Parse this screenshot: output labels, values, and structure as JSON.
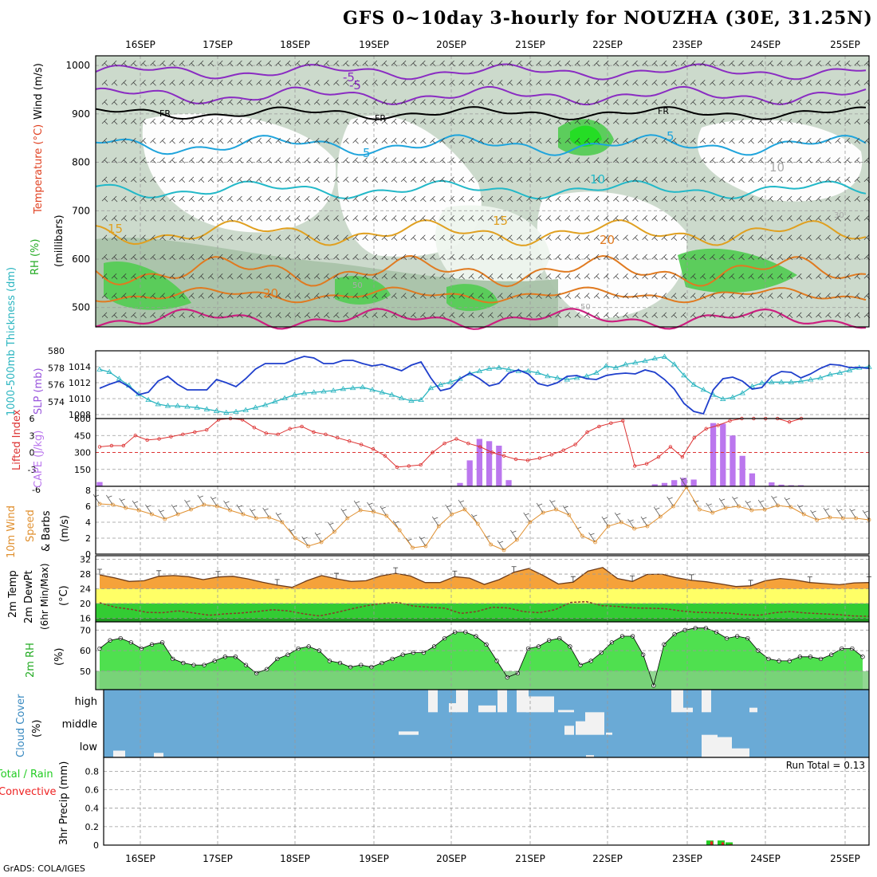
{
  "title": "GFS 0~10day 3-hourly for NOUZHA (30E, 31.25N)",
  "credit": "GrADS: COLA/IGES",
  "date_labels": [
    "16SEP",
    "17SEP",
    "18SEP",
    "19SEP",
    "20SEP",
    "21SEP",
    "22SEP",
    "23SEP",
    "24SEP",
    "25SEP"
  ],
  "colors": {
    "grid": "#999999",
    "temp_line": "#e08a1e",
    "dewpt_line": "#8b3a2b",
    "rh_fill": "#22dd22",
    "cloud_bg": "#6aaad6",
    "cloud_fill": "#f2f2f2",
    "slp": "#1f3fcc",
    "thickness": "#2bb5c0",
    "lifted": "#dd3333",
    "cape": "#bb77ee",
    "wind": "#e09030",
    "precip_total": "#22cc22",
    "precip_conv": "#ee2222"
  },
  "panels": {
    "upper_air": {
      "label_rh": "RH (%)",
      "label_temp": "Temperature (°C)",
      "label_wind": "Wind (m/s)",
      "label_mb": "(millibars)",
      "y_ticks": [
        "500",
        "600",
        "700",
        "800",
        "900",
        "1000"
      ],
      "contour_labels": [
        "-5",
        "FR",
        "FR",
        "FR",
        "5",
        "10",
        "15",
        "20",
        "20",
        "15",
        "-5",
        "5",
        "10",
        "30",
        "50",
        "50"
      ]
    },
    "slp": {
      "label_thick": "1000-500mb Thickness (dm)",
      "label_slp": "SLP (mb)",
      "thick_ticks": [
        "580",
        "578",
        "576",
        "574"
      ],
      "slp_ticks": [
        "1014",
        "1012",
        "1010",
        "1008"
      ]
    },
    "stability": {
      "label_li": "Lifted Index",
      "label_cape": "CAPE (J/kg)",
      "li_ticks": [
        "-3",
        "0",
        "3",
        "6"
      ],
      "li_top": "-6",
      "cape_ticks": [
        "600",
        "450",
        "300",
        "150"
      ]
    },
    "wind10": {
      "label_1": "10m Wind",
      "label_2": "Speed",
      "label_3": "& Barbs",
      "label_unit": "(m/s)",
      "y_ticks": [
        "8",
        "6",
        "4",
        "2",
        "0"
      ]
    },
    "temp2m": {
      "label_1": "2m Temp",
      "label_2": "2m DewPt",
      "label_3": "(6hr Min/Max)",
      "label_unit": "(°C)",
      "y_ticks": [
        "32",
        "28",
        "24",
        "20",
        "16"
      ]
    },
    "rh2m": {
      "label_1": "2m RH",
      "label_unit": "(%)",
      "y_ticks": [
        "70",
        "60",
        "50"
      ]
    },
    "cloud": {
      "label_1": "Cloud Cover",
      "label_unit": "(%)",
      "levels": [
        "high",
        "middle",
        "low"
      ]
    },
    "precip": {
      "label_total": "Total / Rain",
      "label_conv": "Convective",
      "label_y": "3hr Precip (mm)",
      "y_ticks": [
        "0.8",
        "0.6",
        "0.4",
        "0.2",
        "0"
      ],
      "run_total": "Run Total = 0.13"
    }
  },
  "chart_data": [
    {
      "type": "line",
      "title": "SLP (mb)",
      "ylim": [
        1007.5,
        1016
      ],
      "series": [
        {
          "name": "SLP",
          "values": [
            1011.3,
            1011.8,
            1012.2,
            1011.5,
            1010.5,
            1010.8,
            1012.2,
            1012.8,
            1011.8,
            1011.1,
            1011.1,
            1011.1,
            1012.4,
            1012.0,
            1011.5,
            1012.5,
            1013.7,
            1014.4,
            1014.4,
            1014.4,
            1014.9,
            1015.3,
            1015.1,
            1014.4,
            1014.4,
            1014.8,
            1014.8,
            1014.4,
            1014.1,
            1014.3,
            1013.9,
            1013.5,
            1014.2,
            1014.6,
            1012.6,
            1011.0,
            1011.3,
            1012.5,
            1013.2,
            1012.5,
            1011.6,
            1011.9,
            1013.2,
            1013.6,
            1013.1,
            1011.9,
            1011.6,
            1012.0,
            1012.8,
            1012.9,
            1012.5,
            1012.4,
            1012.9,
            1013.1,
            1013.2,
            1013.1,
            1013.6,
            1013.3,
            1012.4,
            1011.2,
            1009.4,
            1008.4,
            1008.1,
            1011.1,
            1012.5,
            1012.7,
            1012.2,
            1011.2,
            1011.4,
            1012.8,
            1013.4,
            1013.3,
            1012.6,
            1013.1,
            1013.8,
            1014.3,
            1014.2,
            1013.9,
            1013.9,
            1013.8
          ]
        },
        {
          "name": "Thickness",
          "values": [
            577.8,
            577.5,
            576.7,
            575.9,
            574.9,
            574.2,
            573.7,
            573.5,
            573.5,
            573.4,
            573.3,
            573.1,
            572.9,
            572.7,
            572.8,
            573.0,
            573.3,
            573.6,
            574.0,
            574.4,
            574.8,
            575.0,
            575.1,
            575.2,
            575.3,
            575.5,
            575.6,
            575.7,
            575.4,
            575.1,
            574.8,
            574.4,
            574.1,
            574.2,
            575.6,
            576.0,
            576.3,
            576.7,
            577.3,
            577.6,
            577.9,
            578.0,
            577.8,
            577.6,
            577.6,
            577.4,
            577.0,
            576.8,
            576.6,
            576.8,
            577.0,
            577.4,
            578.2,
            578.0,
            578.4,
            578.6,
            578.8,
            579.1,
            579.3,
            578.4,
            577.1,
            576.0,
            575.4,
            574.8,
            574.3,
            574.5,
            575.0,
            575.8,
            576.2,
            576.3,
            576.3,
            576.3,
            576.4,
            576.6,
            576.8,
            577.2,
            577.4,
            577.7,
            578.0,
            578.1
          ]
        }
      ]
    },
    {
      "type": "bar",
      "title": "CAPE (J/kg)",
      "ylim": [
        0,
        600
      ],
      "values": [
        38,
        0,
        0,
        0,
        0,
        0,
        0,
        0,
        0,
        0,
        0,
        0,
        0,
        0,
        0,
        0,
        0,
        0,
        0,
        0,
        0,
        0,
        0,
        0,
        0,
        0,
        0,
        0,
        0,
        0,
        0,
        0,
        0,
        0,
        0,
        0,
        0,
        30,
        230,
        420,
        400,
        360,
        55,
        0,
        0,
        0,
        0,
        0,
        0,
        0,
        0,
        0,
        0,
        0,
        0,
        0,
        0,
        18,
        30,
        55,
        75,
        60,
        0,
        560,
        555,
        450,
        270,
        115,
        0,
        35,
        15,
        10,
        10,
        0,
        0,
        0,
        0,
        0,
        0,
        0
      ]
    },
    {
      "type": "line",
      "title": "Lifted Index",
      "ylim": [
        6,
        -6
      ],
      "values": [
        1.0,
        1.2,
        1.2,
        3.0,
        2.2,
        2.4,
        2.8,
        3.2,
        3.6,
        4.0,
        5.8,
        6.0,
        5.8,
        4.4,
        3.4,
        3.2,
        4.2,
        4.6,
        3.6,
        3.2,
        2.6,
        2.0,
        1.4,
        0.6,
        -0.6,
        -2.6,
        -2.4,
        -2.2,
        0.0,
        1.6,
        2.4,
        1.6,
        1.0,
        0.0,
        -0.6,
        -1.2,
        -1.4,
        -1.0,
        -0.4,
        0.4,
        1.4,
        3.6,
        4.6,
        5.2,
        5.6,
        -2.4,
        -2.0,
        -0.8,
        1.0,
        -0.8,
        2.6,
        4.2,
        4.8,
        5.6,
        6.0,
        6.0,
        6.0,
        6.0,
        5.4,
        6.0
      ]
    },
    {
      "type": "line",
      "title": "10m Wind Speed (m/s)",
      "ylim": [
        0,
        8.5
      ],
      "values": [
        6.3,
        6.2,
        5.8,
        5.5,
        5.0,
        4.4,
        5.0,
        5.6,
        6.2,
        6.0,
        5.5,
        5.0,
        4.5,
        4.6,
        4.0,
        2.0,
        1.0,
        1.5,
        2.8,
        4.5,
        5.5,
        5.3,
        4.8,
        3.0,
        0.8,
        1.0,
        3.5,
        5.0,
        5.6,
        3.8,
        1.2,
        0.5,
        1.8,
        4.0,
        5.2,
        5.6,
        4.9,
        2.3,
        1.5,
        3.5,
        4.0,
        3.2,
        3.5,
        4.7,
        6.0,
        8.4,
        5.6,
        5.2,
        5.8,
        6.0,
        5.5,
        5.6,
        6.1,
        5.9,
        5.0,
        4.3,
        4.6,
        4.5,
        4.5,
        4.3
      ]
    },
    {
      "type": "area",
      "title": "2m Temp / DewPt (°C)",
      "ylim": [
        15,
        33
      ],
      "series": [
        {
          "name": "2m Temp",
          "values": [
            27.8,
            27.0,
            26.0,
            26.2,
            27.4,
            27.6,
            27.3,
            26.5,
            27.2,
            27.4,
            26.7,
            25.8,
            25.0,
            24.4,
            26.2,
            27.6,
            26.7,
            26.0,
            26.2,
            27.5,
            28.2,
            27.5,
            25.7,
            25.7,
            27.3,
            26.9,
            25.2,
            26.5,
            28.5,
            29.5,
            27.6,
            25.3,
            25.8,
            28.8,
            29.8,
            26.8,
            26.0,
            27.9,
            28.0,
            27.0,
            26.3,
            25.9,
            25.3,
            24.6,
            24.8,
            26.2,
            26.8,
            26.4,
            25.7,
            25.4,
            25.1,
            25.6,
            25.7
          ]
        },
        {
          "name": "2m DewPt",
          "values": [
            20.2,
            19.0,
            18.4,
            17.6,
            17.5,
            18.0,
            17.4,
            16.8,
            17.2,
            17.4,
            17.8,
            18.3,
            18.0,
            17.2,
            16.6,
            17.5,
            18.5,
            19.4,
            20.0,
            20.3,
            19.3,
            19.0,
            18.7,
            17.3,
            17.8,
            19.0,
            18.8,
            17.8,
            17.5,
            18.3,
            20.3,
            20.5,
            19.4,
            19.2,
            18.8,
            18.7,
            18.6,
            18.0,
            17.6,
            17.5,
            17.4,
            17.0,
            16.8,
            17.5,
            17.8,
            17.4,
            17.2,
            17.0,
            16.6,
            16.5
          ]
        }
      ]
    },
    {
      "type": "area",
      "title": "2m RH (%)",
      "ylim": [
        41,
        74
      ],
      "values": [
        61,
        65,
        66,
        64,
        61,
        63,
        64,
        56,
        54,
        53,
        53,
        55,
        57,
        57,
        53,
        49,
        51,
        56,
        58,
        61,
        62,
        60,
        55,
        54,
        52,
        53,
        52,
        54,
        56,
        58,
        59,
        59,
        62,
        66,
        69,
        69,
        67,
        63,
        55,
        47,
        49,
        61,
        62,
        65,
        66,
        62,
        53,
        55,
        59,
        64,
        67,
        67,
        58,
        43,
        63,
        68,
        70,
        71,
        71,
        69,
        66,
        67,
        66,
        60,
        56,
        55,
        55,
        57,
        57,
        56,
        58,
        61,
        61,
        57
      ]
    },
    {
      "type": "bar",
      "title": "Cloud Cover (%)",
      "categories": [
        "high",
        "middle",
        "low"
      ]
    },
    {
      "type": "bar",
      "title": "3hr Precip (mm)",
      "ylim": [
        0,
        1
      ],
      "series": [
        {
          "name": "Total / Rain",
          "values": [
            0.05,
            0.05,
            0.03
          ]
        },
        {
          "name": "Convective",
          "values": [
            0.04,
            0.03,
            0.01
          ]
        }
      ]
    }
  ]
}
